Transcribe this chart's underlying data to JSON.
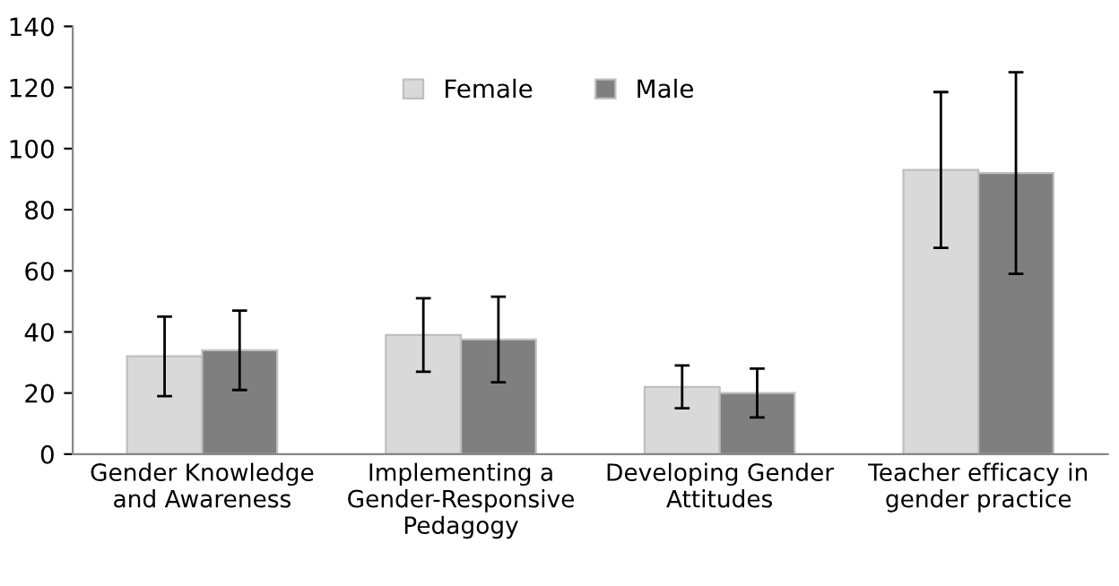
{
  "chart_data": {
    "type": "bar",
    "categories": [
      "Gender Knowledge\nand Awareness",
      "Implementing a\nGender-Responsive\nPedagogy",
      "Developing Gender\nAttitudes",
      "Teacher efficacy in\ngender practice"
    ],
    "series": [
      {
        "name": "Female",
        "color": "#d9d9d9",
        "values": [
          32,
          39,
          22,
          93
        ],
        "errors": [
          13,
          12,
          7,
          25.5
        ]
      },
      {
        "name": "Male",
        "color": "#7f7f7f",
        "values": [
          34,
          37.5,
          20,
          92
        ],
        "errors": [
          13,
          14,
          8,
          33
        ]
      }
    ],
    "ylim": [
      0,
      140
    ],
    "yticks": [
      0,
      20,
      40,
      60,
      80,
      100,
      120,
      140
    ],
    "grid": false,
    "legend": "top"
  }
}
